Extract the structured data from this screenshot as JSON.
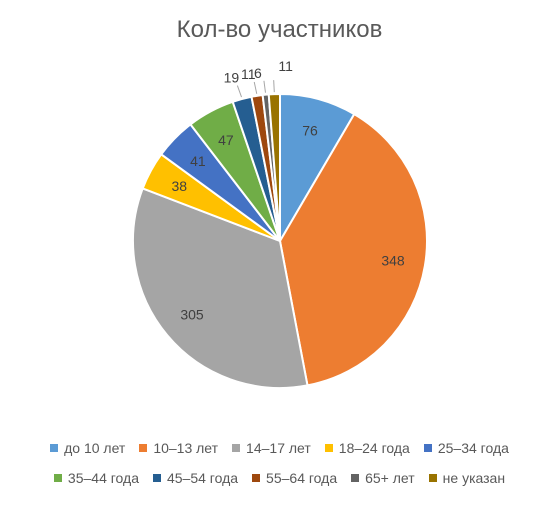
{
  "chart_data": {
    "type": "pie",
    "title": "Кол-во участников",
    "legend": "bottom",
    "categories": [
      "до 10 лет",
      "10–13 лет",
      "14–17 лет",
      "18–24 года",
      "25–34 года",
      "35–44 года",
      "45–54 года",
      "55–64 года",
      "65+ лет",
      "не указан"
    ],
    "values": [
      76,
      348,
      305,
      38,
      41,
      47,
      19,
      11,
      6,
      11
    ],
    "colors": [
      "#5B9BD5",
      "#ED7D31",
      "#A5A5A5",
      "#FFC000",
      "#4472C4",
      "#70AD47",
      "#255E91",
      "#9E480E",
      "#636363",
      "#997300"
    ]
  }
}
